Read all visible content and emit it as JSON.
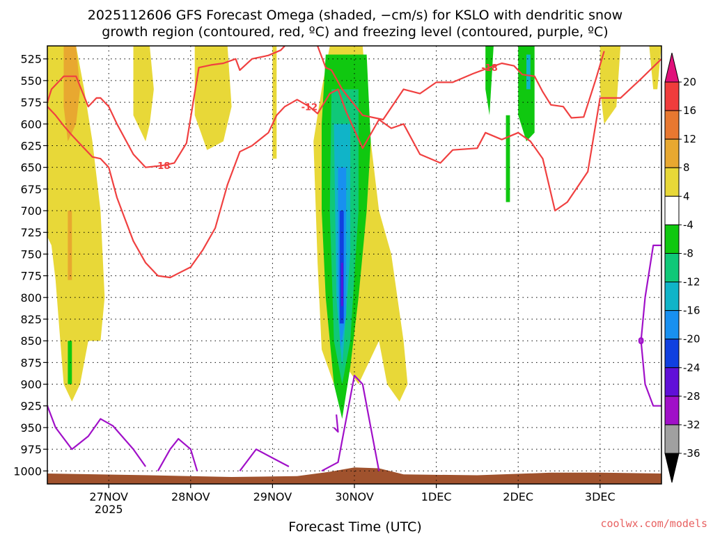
{
  "chart_data": {
    "type": "heatmap",
    "title_line1": "2025112606 GFS Forecast Omega (shaded, −cm/s) for KSLO with dendritic snow",
    "title_line2": "growth region (contoured, red, ºC) and freezing level (contoured, purple, ºC)",
    "xlabel": "Forecast Time (UTC)",
    "ylabel": "",
    "x_ticks": [
      {
        "day": 27,
        "label": "27NOV",
        "sub": "2025"
      },
      {
        "day": 28,
        "label": "28NOV",
        "sub": ""
      },
      {
        "day": 29,
        "label": "29NOV",
        "sub": ""
      },
      {
        "day": 30,
        "label": "30NOV",
        "sub": ""
      },
      {
        "day": 31,
        "label": "1DEC",
        "sub": ""
      },
      {
        "day": 32,
        "label": "2DEC",
        "sub": ""
      },
      {
        "day": 33,
        "label": "3DEC",
        "sub": ""
      }
    ],
    "xlim_days": [
      26.25,
      33.75
    ],
    "y_ticks": [
      525,
      550,
      575,
      600,
      625,
      650,
      675,
      700,
      725,
      750,
      775,
      800,
      825,
      850,
      875,
      900,
      925,
      950,
      975,
      1000
    ],
    "ylim_hpa": [
      510,
      1015
    ],
    "grid": true,
    "surface_color": "#a0522d",
    "colorbar": {
      "levels": [
        20,
        16,
        12,
        8,
        4,
        -4,
        -8,
        -12,
        -16,
        -20,
        -24,
        -28,
        -32,
        -36
      ],
      "colors": [
        "#f03c3c",
        "#e87830",
        "#e8a830",
        "#e8d838",
        "#ffffff",
        "#10c810",
        "#10c878",
        "#10b4c8",
        "#1890f0",
        "#1040e0",
        "#6010d8",
        "#a010c8",
        "#a0a0a0"
      ],
      "over_color": "#e0107a",
      "under_color": "#000000"
    },
    "red_contours": [
      {
        "level": -18,
        "label": "-18",
        "points": [
          [
            26.25,
            575
          ],
          [
            26.3,
            560
          ],
          [
            26.45,
            545
          ],
          [
            26.6,
            545
          ],
          [
            26.75,
            580
          ],
          [
            26.85,
            570
          ],
          [
            26.9,
            570
          ],
          [
            27.0,
            580
          ],
          [
            27.1,
            600
          ],
          [
            27.3,
            635
          ],
          [
            27.45,
            650
          ],
          [
            27.65,
            648
          ],
          [
            27.8,
            645
          ],
          [
            27.95,
            622
          ],
          [
            28.1,
            535
          ],
          [
            28.25,
            532
          ],
          [
            28.4,
            530
          ],
          [
            28.55,
            525
          ],
          [
            28.6,
            538
          ],
          [
            28.75,
            525
          ],
          [
            28.95,
            521
          ],
          [
            29.1,
            515
          ],
          [
            29.15,
            510
          ]
        ]
      },
      {
        "level": -18,
        "label": "-18",
        "points": [
          [
            29.55,
            510
          ],
          [
            29.65,
            535
          ],
          [
            29.72,
            538
          ],
          [
            29.85,
            560
          ],
          [
            30.1,
            590
          ],
          [
            30.35,
            595
          ],
          [
            30.6,
            560
          ],
          [
            30.8,
            565
          ],
          [
            31.0,
            552
          ],
          [
            31.2,
            552
          ],
          [
            31.45,
            542
          ],
          [
            31.65,
            535
          ],
          [
            31.8,
            530
          ],
          [
            31.95,
            533
          ],
          [
            32.05,
            543
          ],
          [
            32.2,
            545
          ],
          [
            32.3,
            563
          ],
          [
            32.4,
            578
          ],
          [
            32.55,
            580
          ],
          [
            32.65,
            593
          ],
          [
            32.8,
            592
          ],
          [
            32.95,
            548
          ],
          [
            33.05,
            516
          ]
        ]
      },
      {
        "level": -12,
        "label": "-12",
        "points": [
          [
            26.25,
            580
          ],
          [
            26.35,
            590
          ],
          [
            26.45,
            602
          ],
          [
            26.55,
            613
          ],
          [
            26.7,
            628
          ],
          [
            26.8,
            638
          ],
          [
            26.9,
            640
          ],
          [
            27.0,
            650
          ],
          [
            27.1,
            685
          ],
          [
            27.2,
            710
          ],
          [
            27.3,
            735
          ],
          [
            27.45,
            760
          ],
          [
            27.6,
            775
          ],
          [
            27.75,
            777
          ],
          [
            28.0,
            765
          ],
          [
            28.15,
            745
          ],
          [
            28.3,
            720
          ],
          [
            28.45,
            670
          ],
          [
            28.6,
            632
          ],
          [
            28.75,
            625
          ],
          [
            28.95,
            610
          ],
          [
            29.05,
            590
          ],
          [
            29.15,
            580
          ],
          [
            29.3,
            572
          ],
          [
            29.45,
            580
          ],
          [
            29.55,
            588
          ],
          [
            29.7,
            565
          ],
          [
            29.8,
            560
          ],
          [
            29.9,
            586
          ],
          [
            30.1,
            628
          ],
          [
            30.3,
            595
          ],
          [
            30.45,
            605
          ],
          [
            30.6,
            600
          ],
          [
            30.8,
            635
          ],
          [
            31.05,
            645
          ],
          [
            31.2,
            630
          ],
          [
            31.5,
            628
          ],
          [
            31.6,
            610
          ],
          [
            31.8,
            618
          ],
          [
            32.0,
            610
          ],
          [
            32.15,
            620
          ],
          [
            32.3,
            640
          ],
          [
            32.45,
            700
          ],
          [
            32.6,
            690
          ],
          [
            32.85,
            655
          ],
          [
            33.0,
            570
          ],
          [
            33.25,
            570
          ],
          [
            33.5,
            548
          ],
          [
            33.75,
            525
          ]
        ]
      }
    ],
    "purple_contours": [
      {
        "level": 0,
        "label": "",
        "points": [
          [
            26.25,
            925
          ],
          [
            26.35,
            950
          ],
          [
            26.55,
            975
          ],
          [
            26.75,
            960
          ],
          [
            26.9,
            940
          ],
          [
            27.05,
            948
          ],
          [
            27.3,
            975
          ],
          [
            27.45,
            995
          ]
        ]
      },
      {
        "level": 0,
        "label": "",
        "points": [
          [
            27.6,
            1000
          ],
          [
            27.75,
            975
          ],
          [
            27.85,
            963
          ],
          [
            28.0,
            975
          ],
          [
            28.08,
            1000
          ]
        ]
      },
      {
        "level": 0,
        "label": "",
        "points": [
          [
            28.6,
            1000
          ],
          [
            28.8,
            975
          ],
          [
            29.0,
            985
          ],
          [
            29.2,
            995
          ]
        ]
      },
      {
        "level": 0,
        "label": "",
        "points": [
          [
            29.6,
            1000
          ],
          [
            29.8,
            990
          ],
          [
            30.0,
            890
          ],
          [
            30.1,
            900
          ],
          [
            30.2,
            950
          ],
          [
            30.3,
            1000
          ]
        ]
      },
      {
        "level": 0,
        "label": "",
        "points": [
          [
            29.75,
            950
          ],
          [
            29.8,
            955
          ],
          [
            29.78,
            935
          ]
        ]
      },
      {
        "level": 0,
        "label": "0",
        "points": [
          [
            33.75,
            740
          ],
          [
            33.65,
            740
          ],
          [
            33.55,
            800
          ],
          [
            33.5,
            850
          ],
          [
            33.55,
            900
          ],
          [
            33.65,
            925
          ],
          [
            33.75,
            925
          ]
        ]
      }
    ],
    "omega_shading": [
      {
        "color": "#e8d838",
        "polygons": [
          [
            [
              26.25,
              510
            ],
            [
              26.6,
              510
            ],
            [
              26.7,
              560
            ],
            [
              26.8,
              620
            ],
            [
              26.9,
              700
            ],
            [
              26.95,
              800
            ],
            [
              26.9,
              850
            ],
            [
              26.75,
              850
            ],
            [
              26.65,
              900
            ],
            [
              26.55,
              920
            ],
            [
              26.45,
              900
            ],
            [
              26.4,
              840
            ],
            [
              26.35,
              780
            ],
            [
              26.3,
              740
            ],
            [
              26.25,
              730
            ]
          ],
          [
            [
              27.3,
              510
            ],
            [
              27.5,
              510
            ],
            [
              27.55,
              560
            ],
            [
              27.5,
              600
            ],
            [
              27.45,
              620
            ],
            [
              27.3,
              590
            ]
          ],
          [
            [
              28.05,
              510
            ],
            [
              28.45,
              510
            ],
            [
              28.5,
              580
            ],
            [
              28.4,
              620
            ],
            [
              28.2,
              630
            ],
            [
              28.05,
              590
            ]
          ],
          [
            [
              29.0,
              510
            ],
            [
              29.05,
              510
            ],
            [
              29.05,
              640
            ],
            [
              29.0,
              640
            ]
          ],
          [
            [
              29.7,
              510
            ],
            [
              30.1,
              510
            ],
            [
              30.2,
              620
            ],
            [
              30.3,
              700
            ],
            [
              30.45,
              750
            ],
            [
              30.6,
              850
            ],
            [
              30.65,
              900
            ],
            [
              30.55,
              920
            ],
            [
              30.4,
              900
            ],
            [
              30.3,
              850
            ],
            [
              30.05,
              900
            ],
            [
              29.9,
              880
            ],
            [
              29.75,
              900
            ],
            [
              29.6,
              860
            ],
            [
              29.55,
              760
            ],
            [
              29.5,
              620
            ],
            [
              29.6,
              560
            ]
          ],
          [
            [
              33.6,
              510
            ],
            [
              33.75,
              510
            ],
            [
              33.7,
              560
            ],
            [
              33.65,
              560
            ]
          ],
          [
            [
              33.0,
              510
            ],
            [
              33.25,
              510
            ],
            [
              33.2,
              580
            ],
            [
              33.05,
              600
            ],
            [
              33.0,
              560
            ]
          ]
        ]
      },
      {
        "color": "#e8a830",
        "polygons": [
          [
            [
              26.45,
              510
            ],
            [
              26.6,
              510
            ],
            [
              26.65,
              560
            ],
            [
              26.6,
              600
            ],
            [
              26.5,
              620
            ],
            [
              26.45,
              580
            ]
          ],
          [
            [
              26.5,
              700
            ],
            [
              26.55,
              700
            ],
            [
              26.55,
              780
            ],
            [
              26.5,
              780
            ]
          ]
        ]
      },
      {
        "color": "#10c810",
        "polygons": [
          [
            [
              29.65,
              520
            ],
            [
              30.15,
              520
            ],
            [
              30.2,
              620
            ],
            [
              30.15,
              700
            ],
            [
              30.05,
              800
            ],
            [
              29.95,
              880
            ],
            [
              29.85,
              940
            ],
            [
              29.75,
              900
            ],
            [
              29.65,
              800
            ],
            [
              29.6,
              700
            ],
            [
              29.6,
              600
            ]
          ],
          [
            [
              32.0,
              510
            ],
            [
              32.2,
              510
            ],
            [
              32.2,
              610
            ],
            [
              32.1,
              620
            ],
            [
              32.0,
              590
            ]
          ],
          [
            [
              31.6,
              510
            ],
            [
              31.7,
              510
            ],
            [
              31.65,
              590
            ],
            [
              31.6,
              560
            ]
          ],
          [
            [
              31.85,
              590
            ],
            [
              31.9,
              590
            ],
            [
              31.9,
              690
            ],
            [
              31.85,
              690
            ]
          ],
          [
            [
              26.5,
              850
            ],
            [
              26.55,
              850
            ],
            [
              26.55,
              900
            ],
            [
              26.5,
              900
            ]
          ]
        ]
      },
      {
        "color": "#10c878",
        "polygons": [
          [
            [
              29.72,
              560
            ],
            [
              30.05,
              560
            ],
            [
              30.05,
              700
            ],
            [
              29.95,
              850
            ],
            [
              29.85,
              900
            ],
            [
              29.75,
              850
            ],
            [
              29.7,
              700
            ]
          ]
        ]
      },
      {
        "color": "#10b4c8",
        "polygons": [
          [
            [
              29.75,
              600
            ],
            [
              29.95,
              600
            ],
            [
              29.95,
              750
            ],
            [
              29.85,
              880
            ],
            [
              29.78,
              800
            ]
          ],
          [
            [
              32.1,
              520
            ],
            [
              32.15,
              520
            ],
            [
              32.15,
              560
            ],
            [
              32.1,
              560
            ]
          ]
        ]
      },
      {
        "color": "#1890f0",
        "polygons": [
          [
            [
              29.8,
              650
            ],
            [
              29.9,
              650
            ],
            [
              29.9,
              820
            ],
            [
              29.83,
              860
            ],
            [
              29.8,
              780
            ]
          ]
        ]
      },
      {
        "color": "#1040e0",
        "polygons": [
          [
            [
              29.82,
              700
            ],
            [
              29.87,
              700
            ],
            [
              29.87,
              830
            ],
            [
              29.82,
              830
            ]
          ]
        ]
      },
      {
        "color": "#6010d8",
        "polygons": [
          [
            [
              29.84,
              760
            ],
            [
              29.86,
              760
            ],
            [
              29.86,
              810
            ],
            [
              29.84,
              810
            ]
          ]
        ]
      }
    ]
  },
  "footer": {
    "credit": "coolwx.com/models"
  }
}
